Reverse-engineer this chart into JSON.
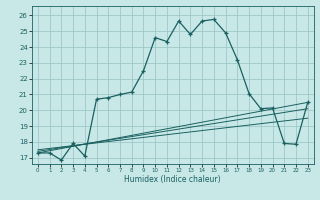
{
  "xlabel": "Humidex (Indice chaleur)",
  "bg_color": "#c8e8e8",
  "grid_color": "#a0c8c8",
  "line_color": "#1a6060",
  "xlim": [
    -0.5,
    23.5
  ],
  "ylim": [
    16.6,
    26.6
  ],
  "xticks": [
    0,
    1,
    2,
    3,
    4,
    5,
    6,
    7,
    8,
    9,
    10,
    11,
    12,
    13,
    14,
    15,
    16,
    17,
    18,
    19,
    20,
    21,
    22,
    23
  ],
  "yticks": [
    17,
    18,
    19,
    20,
    21,
    22,
    23,
    24,
    25,
    26
  ],
  "main_x": [
    0,
    1,
    2,
    3,
    4,
    5,
    6,
    7,
    8,
    9,
    10,
    11,
    12,
    13,
    14,
    15,
    16,
    17,
    18,
    19,
    20,
    21,
    22,
    23
  ],
  "main_y": [
    17.3,
    17.3,
    16.85,
    17.9,
    17.1,
    20.7,
    20.8,
    21.0,
    21.15,
    22.5,
    24.6,
    24.35,
    25.65,
    24.8,
    25.65,
    25.75,
    24.9,
    23.2,
    21.05,
    20.1,
    20.15,
    17.9,
    17.85,
    20.5
  ],
  "line1_x": [
    0,
    23
  ],
  "line1_y": [
    17.3,
    20.5
  ],
  "line2_x": [
    0,
    23
  ],
  "line2_y": [
    17.4,
    20.1
  ],
  "line3_x": [
    0,
    23
  ],
  "line3_y": [
    17.5,
    19.5
  ]
}
